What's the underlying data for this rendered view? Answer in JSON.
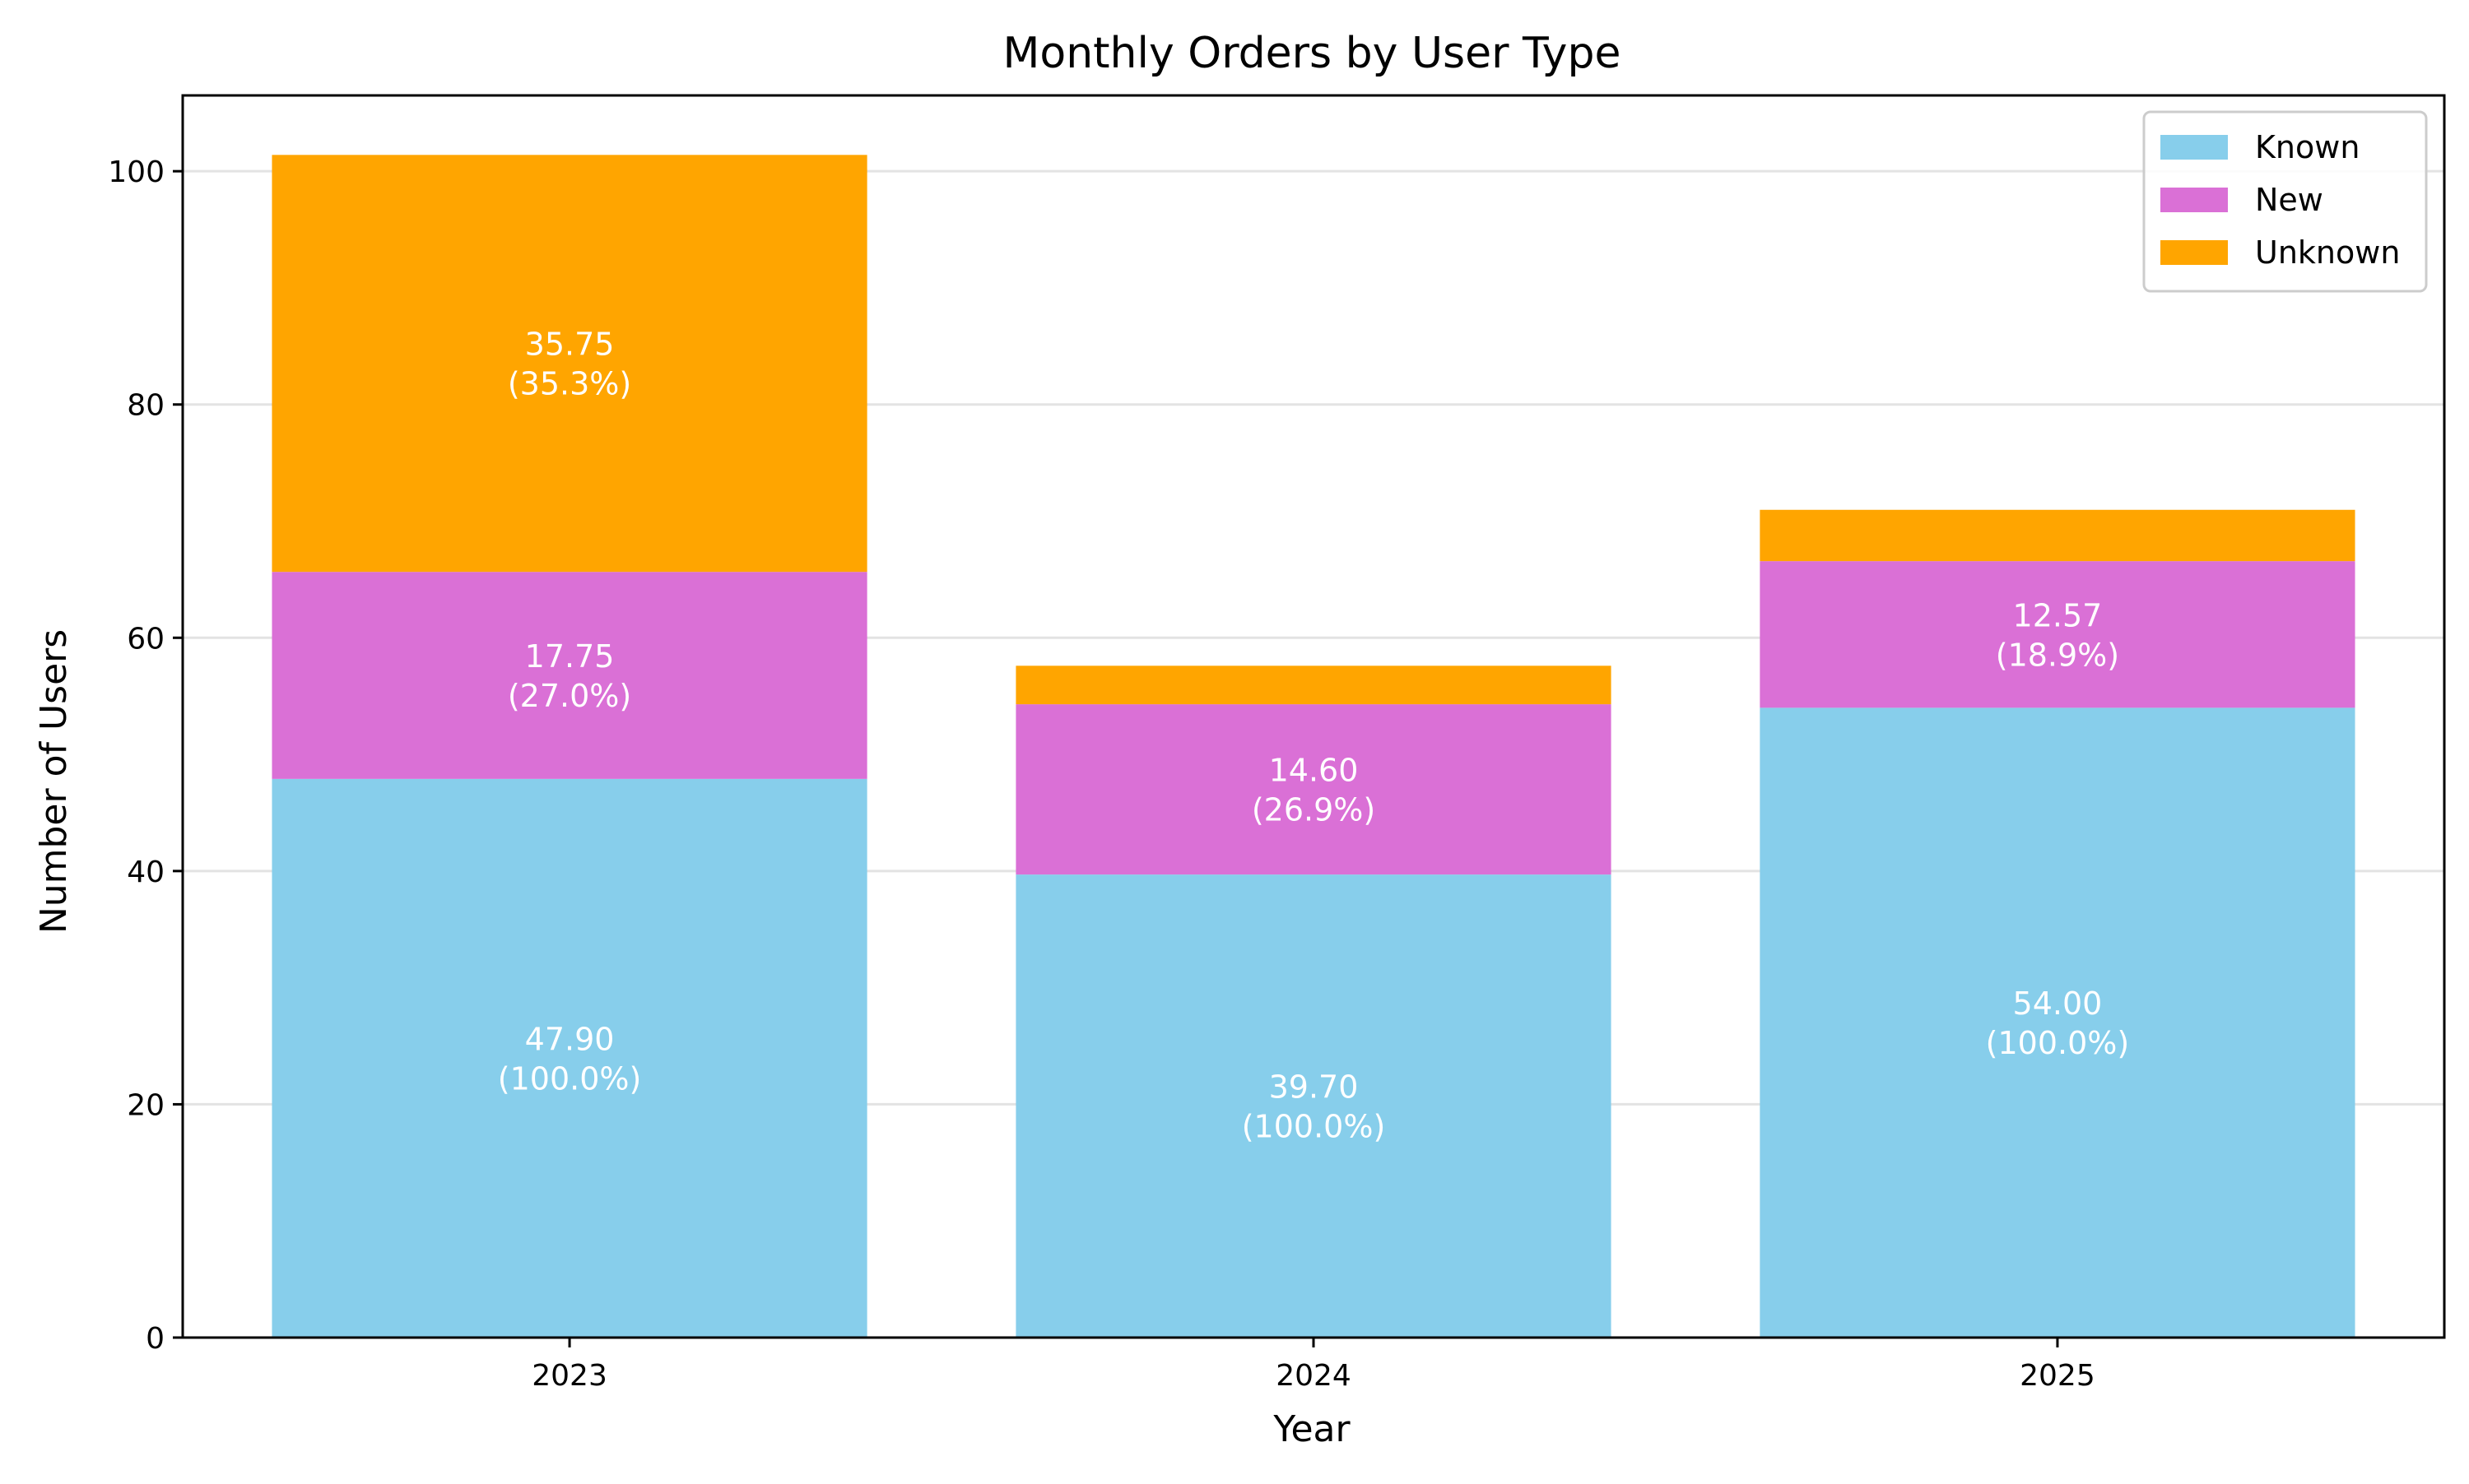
{
  "chart_data": {
    "type": "bar",
    "stacked": true,
    "title": "Monthly Orders by User Type",
    "xlabel": "Year",
    "ylabel": "Number of Users",
    "categories": [
      "2023",
      "2024",
      "2025"
    ],
    "ylim": [
      0,
      106.5
    ],
    "yticks": [
      0,
      20,
      40,
      60,
      80,
      100
    ],
    "grid": "y",
    "legend_position": "top-right",
    "series": [
      {
        "name": "Known",
        "color": "#87CEEB",
        "values": [
          47.9,
          39.7,
          54.0
        ],
        "labels": [
          [
            "47.90",
            "(100.0%)"
          ],
          [
            "39.70",
            "(100.0%)"
          ],
          [
            "54.00",
            "(100.0%)"
          ]
        ]
      },
      {
        "name": "New",
        "color": "#DA70D6",
        "values": [
          17.75,
          14.6,
          12.57
        ],
        "labels": [
          [
            "17.75",
            "(27.0%)"
          ],
          [
            "14.60",
            "(26.9%)"
          ],
          [
            "12.57",
            "(18.9%)"
          ]
        ]
      },
      {
        "name": "Unknown",
        "color": "#FFA500",
        "values": [
          35.75,
          3.3,
          4.4
        ],
        "labels": [
          [
            "35.75",
            "(35.3%)"
          ],
          null,
          null
        ]
      }
    ]
  }
}
